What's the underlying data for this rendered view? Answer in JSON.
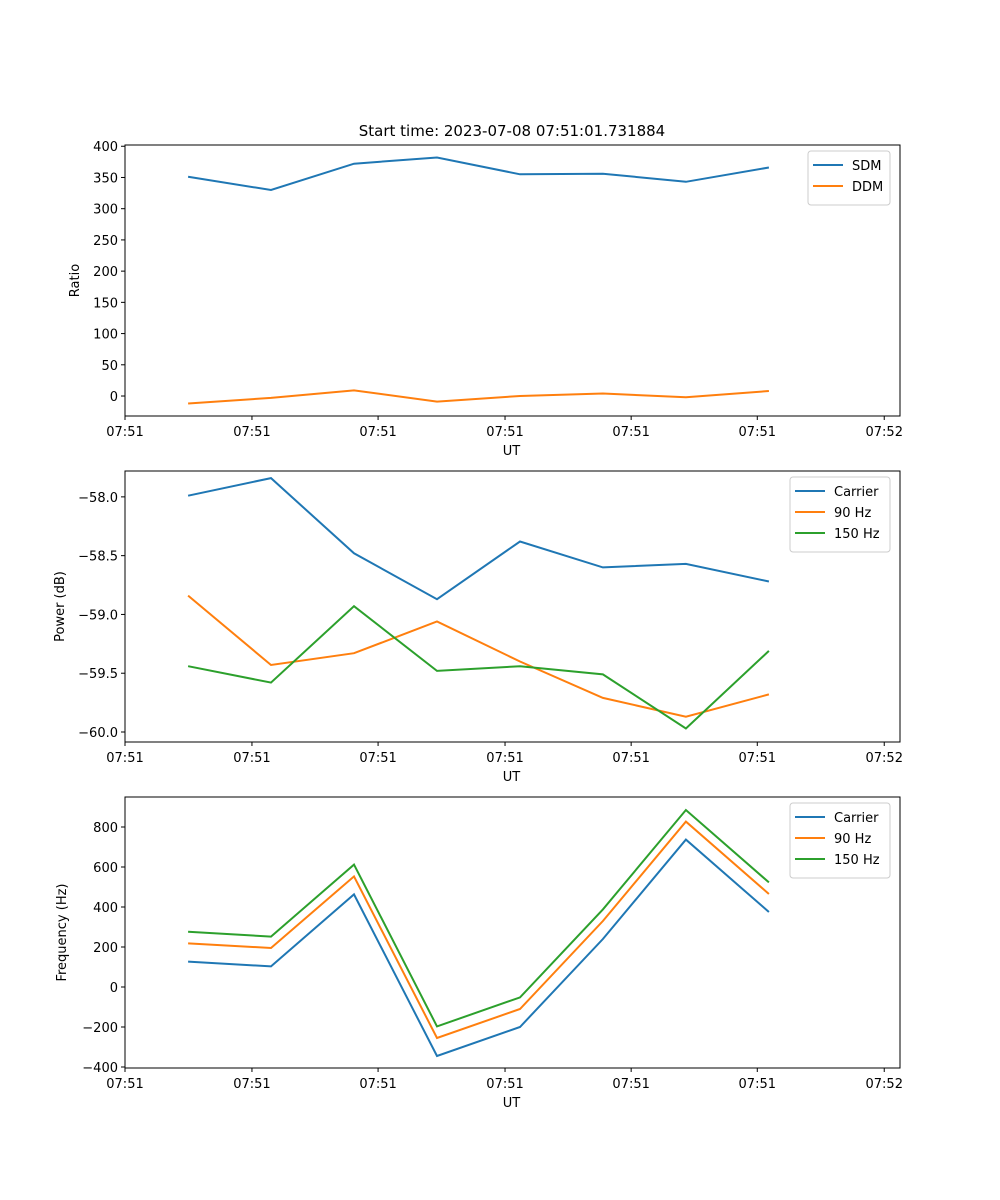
{
  "chart_data": [
    {
      "type": "line",
      "title": "Start time: 2023-07-08 07:51:01.731884",
      "xlabel": "UT",
      "ylabel": "Ratio",
      "x_tick_labels": [
        "07:51",
        "07:51",
        "07:51",
        "07:51",
        "07:51",
        "07:51",
        "07:52"
      ],
      "x_index_range": [
        -0.76,
        8.58
      ],
      "x_tick_positions": [
        -0.76,
        0.77,
        2.29,
        3.82,
        5.34,
        6.86,
        8.39
      ],
      "x": [
        0,
        1,
        2,
        3,
        4,
        5,
        6,
        7
      ],
      "ylim": [
        -32,
        402
      ],
      "y_ticks": [
        0,
        50,
        100,
        150,
        200,
        250,
        300,
        350,
        400
      ],
      "legend_position": "top-right",
      "series": [
        {
          "name": "SDM",
          "color": "#1f77b4",
          "values": [
            351,
            330,
            372,
            382,
            355,
            356,
            343,
            366
          ]
        },
        {
          "name": "DDM",
          "color": "#ff7f0e",
          "values": [
            -12,
            -3,
            9,
            -9,
            0,
            4,
            -2,
            8
          ]
        }
      ]
    },
    {
      "type": "line",
      "title": "",
      "xlabel": "UT",
      "ylabel": "Power (dB)",
      "x_tick_labels": [
        "07:51",
        "07:51",
        "07:51",
        "07:51",
        "07:51",
        "07:51",
        "07:52"
      ],
      "x_index_range": [
        -0.76,
        8.58
      ],
      "x_tick_positions": [
        -0.76,
        0.77,
        2.29,
        3.82,
        5.34,
        6.86,
        8.39
      ],
      "x": [
        0,
        1,
        2,
        3,
        4,
        5,
        6,
        7
      ],
      "ylim": [
        -60.085,
        -57.78
      ],
      "y_ticks": [
        -60.0,
        -59.5,
        -59.0,
        -58.5,
        -58.0
      ],
      "y_tick_labels": [
        "−60.0",
        "−59.5",
        "−59.0",
        "−58.5",
        "−58.0"
      ],
      "legend_position": "top-right",
      "series": [
        {
          "name": "Carrier",
          "color": "#1f77b4",
          "values": [
            -57.99,
            -57.84,
            -58.48,
            -58.87,
            -58.38,
            -58.6,
            -58.57,
            -58.72
          ]
        },
        {
          "name": "90 Hz",
          "color": "#ff7f0e",
          "values": [
            -58.84,
            -59.43,
            -59.33,
            -59.06,
            -59.4,
            -59.71,
            -59.87,
            -59.68
          ]
        },
        {
          "name": "150 Hz",
          "color": "#2ca02c",
          "values": [
            -59.44,
            -59.58,
            -58.93,
            -59.48,
            -59.44,
            -59.51,
            -59.97,
            -59.31
          ]
        }
      ]
    },
    {
      "type": "line",
      "title": "",
      "xlabel": "UT",
      "ylabel": "Frequency (Hz)",
      "x_tick_labels": [
        "07:51",
        "07:51",
        "07:51",
        "07:51",
        "07:51",
        "07:51",
        "07:52"
      ],
      "x_index_range": [
        -0.76,
        8.58
      ],
      "x_tick_positions": [
        -0.76,
        0.77,
        2.29,
        3.82,
        5.34,
        6.86,
        8.39
      ],
      "x": [
        0,
        1,
        2,
        3,
        4,
        5,
        6,
        7
      ],
      "ylim": [
        -405,
        950
      ],
      "y_ticks": [
        -400,
        -200,
        0,
        200,
        400,
        600,
        800
      ],
      "y_tick_labels": [
        "−400",
        "−200",
        "0",
        "200",
        "400",
        "600",
        "800"
      ],
      "legend_position": "top-right",
      "series": [
        {
          "name": "Carrier",
          "color": "#1f77b4",
          "values": [
            127,
            103,
            463,
            -345,
            -200,
            240,
            737,
            375
          ]
        },
        {
          "name": "90 Hz",
          "color": "#ff7f0e",
          "values": [
            218,
            195,
            553,
            -255,
            -110,
            330,
            827,
            465
          ]
        },
        {
          "name": "150 Hz",
          "color": "#2ca02c",
          "values": [
            276,
            252,
            612,
            -197,
            -52,
            388,
            885,
            523
          ]
        }
      ]
    }
  ]
}
